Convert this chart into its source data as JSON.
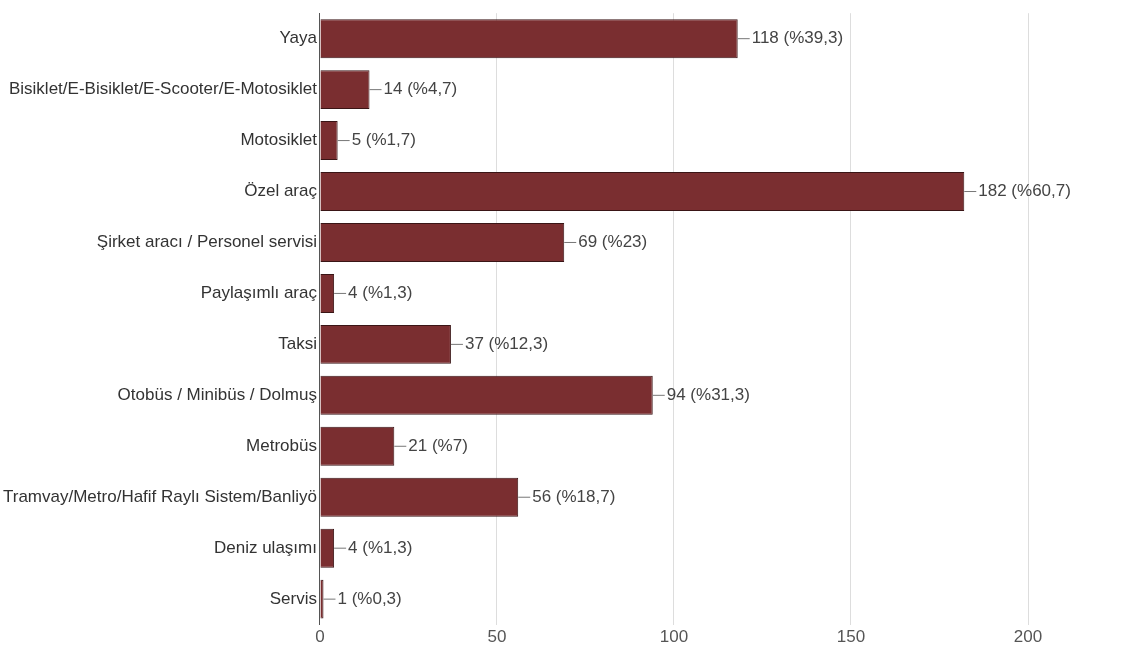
{
  "chart_data": {
    "type": "bar",
    "orientation": "horizontal",
    "categories": [
      "Yaya",
      "Bisiklet/E-Bisiklet/E-Scooter/E-Motosiklet",
      "Motosiklet",
      "Özel araç",
      "Şirket aracı / Personel servisi",
      "Paylaşımlı araç",
      "Taksi",
      "Otobüs / Minibüs / Dolmuş",
      "Metrobüs",
      "Tramvay/Metro/Hafif Raylı Sistem/Banliyö",
      "Deniz ulaşımı",
      "Servis"
    ],
    "values": [
      118,
      14,
      5,
      182,
      69,
      4,
      37,
      94,
      21,
      56,
      4,
      1
    ],
    "value_labels": [
      "118 (%39,3)",
      "14 (%4,7)",
      "5 (%1,7)",
      "182 (%60,7)",
      "69 (%23)",
      "4 (%1,3)",
      "37 (%12,3)",
      "94 (%31,3)",
      "21 (%7)",
      "56 (%18,7)",
      "4 (%1,3)",
      "1 (%0,3)"
    ],
    "color": "#7a2e30",
    "xlim": [
      0,
      200
    ],
    "xticks": [
      0,
      50,
      100,
      150,
      200
    ],
    "grid": "x",
    "legend": false
  }
}
